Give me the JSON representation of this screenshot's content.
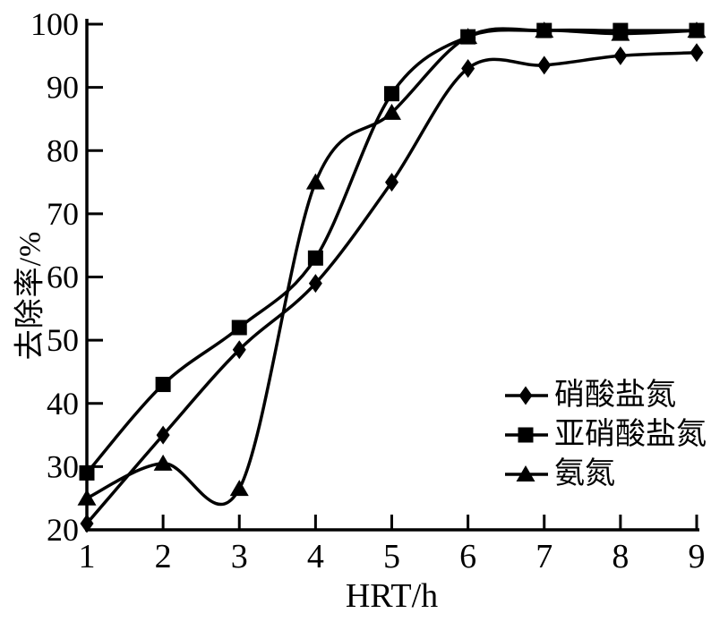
{
  "chart_data": {
    "type": "line",
    "title": "",
    "xlabel": "HRT/h",
    "ylabel": "去除率/%",
    "x": [
      1,
      2,
      3,
      4,
      5,
      6,
      7,
      8,
      9
    ],
    "x_ticks": [
      1,
      2,
      3,
      4,
      5,
      6,
      7,
      8,
      9
    ],
    "y_ticks": [
      20,
      30,
      40,
      50,
      60,
      70,
      80,
      90,
      100
    ],
    "xlim": [
      1,
      9
    ],
    "ylim": [
      20,
      100
    ],
    "grid": false,
    "curve_style": "smoothed",
    "legend_position": "inside-right-lower",
    "colors": {
      "stroke": "#000000",
      "background": "#ffffff",
      "text": "#000000"
    },
    "series": [
      {
        "name": "硝酸盐氮",
        "marker": "diamond",
        "values": [
          21,
          35,
          48.5,
          59,
          75,
          93,
          93.5,
          95,
          95.5
        ]
      },
      {
        "name": "亚硝酸盐氮",
        "marker": "square",
        "values": [
          29,
          43,
          52,
          63,
          89,
          98,
          99,
          99,
          99
        ]
      },
      {
        "name": "氨氮",
        "marker": "triangle",
        "values": [
          25,
          30.5,
          26.5,
          75,
          86,
          98,
          99,
          98.5,
          99
        ]
      }
    ]
  }
}
